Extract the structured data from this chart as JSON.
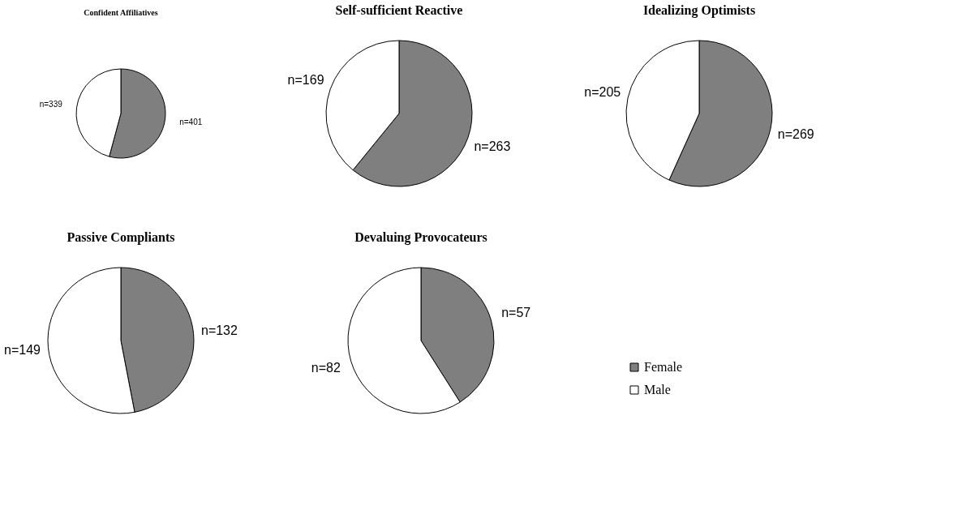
{
  "chart_data": [
    {
      "type": "pie",
      "title": "Confident Affiliatives",
      "categories": [
        "Female",
        "Male"
      ],
      "values": [
        401,
        339
      ],
      "colors": [
        "#7f7f7f",
        "#ffffff"
      ],
      "value_labels": [
        "n=401",
        "n=339"
      ],
      "legend": "bottom right"
    },
    {
      "type": "pie",
      "title": "Self-sufficient Reactive",
      "categories": [
        null,
        null
      ],
      "values": [
        263,
        169
      ],
      "colors": [
        "#7f7f7f",
        "#ffffff"
      ],
      "value_labels": [
        "n=263",
        "n=169"
      ]
    },
    {
      "type": "pie",
      "title": "Idealizing Optimists",
      "categories": [
        null,
        null
      ],
      "values": [
        269,
        205
      ],
      "colors": [
        "#7f7f7f",
        "#ffffff"
      ],
      "value_labels": [
        "n=269",
        "n=205"
      ]
    },
    {
      "type": "pie",
      "title": "Passive Compliants",
      "categories": [
        null,
        null
      ],
      "values": [
        132,
        149
      ],
      "colors": [
        "#7f7f7f",
        "#ffffff"
      ],
      "value_labels": [
        "n=132",
        "n=149"
      ]
    },
    {
      "type": "pie",
      "title": "Devaluing Provocateurs",
      "categories": [
        null,
        null
      ],
      "values": [
        57,
        82
      ],
      "colors": [
        "#7f7f7f",
        "#ffffff"
      ],
      "value_labels": [
        "n=57",
        "n=82"
      ]
    }
  ]
}
